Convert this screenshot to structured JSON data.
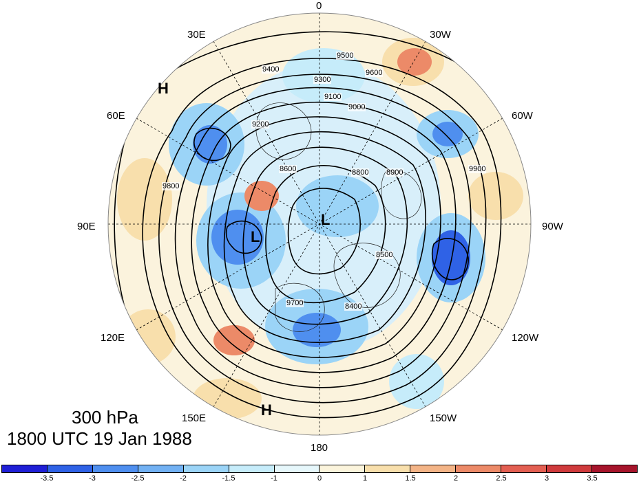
{
  "figure": {
    "level": "300 hPa",
    "datetime": "1800 UTC 19 Jan 1988"
  },
  "longitude_labels": [
    {
      "key": "lon0",
      "text": "0"
    },
    {
      "key": "lon30w",
      "text": "30W"
    },
    {
      "key": "lon60w",
      "text": "60W"
    },
    {
      "key": "lon90w",
      "text": "90W"
    },
    {
      "key": "lon120w",
      "text": "120W"
    },
    {
      "key": "lon150w",
      "text": "150W"
    },
    {
      "key": "lon180",
      "text": "180"
    },
    {
      "key": "lon150e",
      "text": "150E"
    },
    {
      "key": "lon120e",
      "text": "120E"
    },
    {
      "key": "lon90e",
      "text": "90E"
    },
    {
      "key": "lon60e",
      "text": "60E"
    },
    {
      "key": "lon30e",
      "text": "30E"
    }
  ],
  "pressure_centers": [
    {
      "key": "h1",
      "text": "H"
    },
    {
      "key": "h2",
      "text": "H"
    },
    {
      "key": "l1",
      "text": "L"
    },
    {
      "key": "l2",
      "text": "L"
    }
  ],
  "contour_labels": [
    "9500",
    "9600",
    "9300",
    "9400",
    "9100",
    "9200",
    "9000",
    "8900",
    "8800",
    "8600",
    "8500",
    "8400",
    "9700",
    "9800",
    "9900"
  ],
  "colorbar": {
    "colors": [
      "#1f1fd6",
      "#2f62e6",
      "#4f8fef",
      "#72b1f3",
      "#9bd4f7",
      "#c6ecfa",
      "#e6f7fb",
      "#fbf4dc",
      "#f8dfac",
      "#f3b487",
      "#ec8a68",
      "#e35f52",
      "#cf3a3c",
      "#a6142b"
    ],
    "tick_labels": [
      "-3.5",
      "-3",
      "-2.5",
      "-2",
      "-1.5",
      "-1",
      "0",
      "1",
      "1.5",
      "2",
      "2.5",
      "3",
      "3.5"
    ]
  }
}
